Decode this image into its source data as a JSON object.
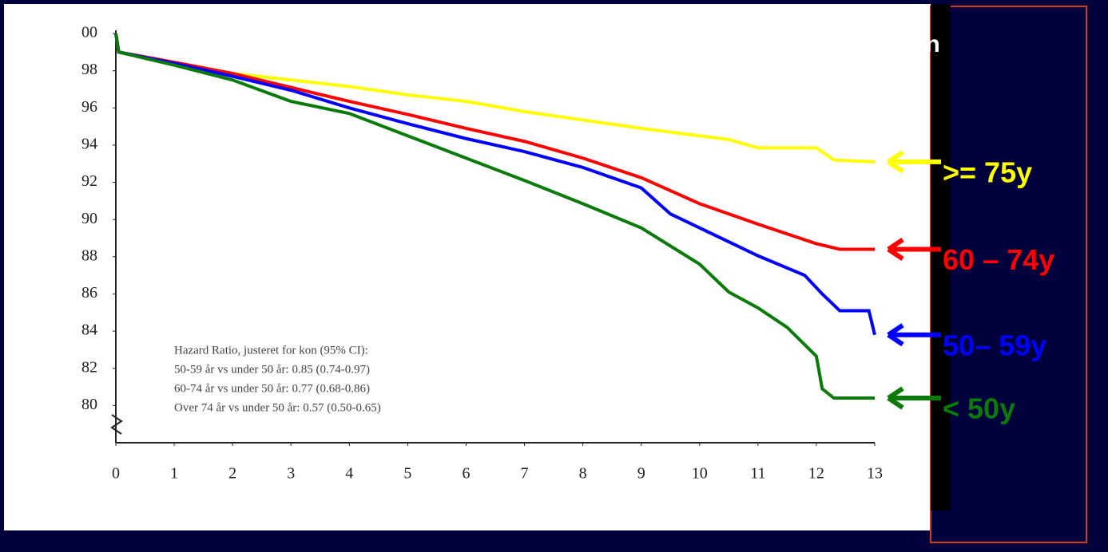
{
  "chart_data": {
    "type": "line",
    "title_fragment": "on",
    "xlim": [
      0,
      13
    ],
    "xticks": [
      0,
      1,
      2,
      3,
      4,
      5,
      6,
      7,
      8,
      9,
      10,
      11,
      12,
      13
    ],
    "ylim": [
      78,
      100
    ],
    "yticks": [
      {
        "value": 100,
        "label": "00"
      },
      98,
      96,
      94,
      92,
      90,
      88,
      86,
      84,
      82,
      80
    ],
    "annotations": [
      "Hazard Ratio, justeret for kon (95% CI):",
      "50-59 år vs under 50 år: 0.85 (0.74-0.97)",
      "60-74 år vs under 50 år: 0.77 (0.68-0.86)",
      "Over 74 år vs under 50 år: 0.57 (0.50-0.65)"
    ],
    "series": [
      {
        "name": ">= 75y",
        "color": "#ffff00",
        "x": [
          0,
          0.05,
          1,
          2,
          3,
          4,
          5,
          6,
          7,
          8,
          9,
          10,
          10.5,
          11,
          12,
          12.3,
          13
        ],
        "values": [
          100,
          99,
          98.45,
          97.85,
          97.5,
          97.15,
          96.7,
          96.35,
          95.8,
          95.35,
          94.9,
          94.5,
          94.3,
          93.85,
          93.85,
          93.2,
          93.1
        ]
      },
      {
        "name": "60 – 74y",
        "color": "#ff0000",
        "x": [
          0,
          0.05,
          1,
          2,
          3,
          4,
          5,
          6,
          7,
          8,
          9,
          10,
          11,
          12,
          12.4,
          13
        ],
        "values": [
          100,
          99,
          98.45,
          97.85,
          97.1,
          96.35,
          95.65,
          94.9,
          94.2,
          93.3,
          92.25,
          90.85,
          89.75,
          88.7,
          88.4,
          88.4
        ]
      },
      {
        "name": "50– 59y",
        "color": "#0000ff",
        "x": [
          0,
          0.05,
          1,
          2,
          3,
          4,
          5,
          6,
          7,
          8,
          9,
          9.5,
          10,
          11,
          11.8,
          12.1,
          12.4,
          12.9,
          13
        ],
        "values": [
          100,
          99,
          98.4,
          97.7,
          96.95,
          96,
          95.15,
          94.35,
          93.65,
          92.8,
          91.7,
          90.3,
          89.55,
          88.05,
          87,
          86,
          85.1,
          85.1,
          83.8
        ]
      },
      {
        "name": "< 50y",
        "color": "#0a7a0a",
        "x": [
          0,
          0.05,
          1,
          2,
          3,
          4,
          5,
          6,
          7,
          8,
          9,
          10,
          10.5,
          11,
          11.5,
          12,
          12.1,
          12.3,
          13
        ],
        "values": [
          100,
          99,
          98.3,
          97.5,
          96.35,
          95.7,
          94.5,
          93.3,
          92.1,
          90.85,
          89.55,
          87.6,
          86.1,
          85.25,
          84.2,
          82.65,
          80.9,
          80.4,
          80.4
        ]
      }
    ]
  }
}
